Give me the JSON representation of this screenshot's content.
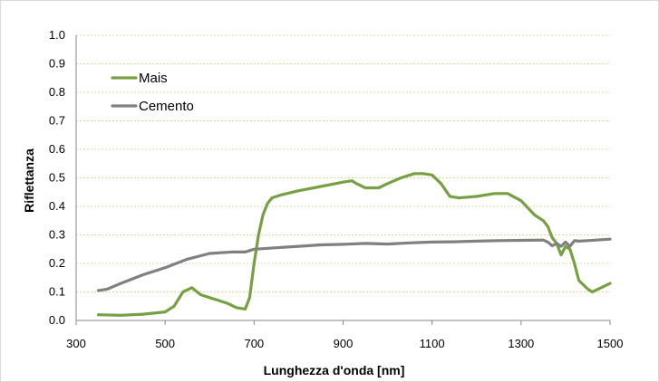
{
  "chart_data": {
    "type": "line",
    "title": "",
    "xlabel": "Lunghezza d'onda [nm]",
    "ylabel": "Riflettanza",
    "xlim": [
      300,
      1500
    ],
    "ylim": [
      0,
      1.0
    ],
    "x_ticks": [
      "300",
      "500",
      "700",
      "900",
      "1100",
      "1300",
      "1500"
    ],
    "y_ticks": [
      "0.0",
      "0.1",
      "0.2",
      "0.3",
      "0.4",
      "0.5",
      "0.6",
      "0.7",
      "0.8",
      "0.9",
      "1.0"
    ],
    "grid": "horizontal dashed",
    "legend_position": "top-left",
    "series": [
      {
        "name": "Mais",
        "color": "#77a043",
        "x": [
          350,
          400,
          450,
          500,
          520,
          540,
          560,
          580,
          600,
          620,
          640,
          660,
          680,
          690,
          700,
          710,
          720,
          730,
          740,
          760,
          800,
          850,
          900,
          920,
          930,
          950,
          980,
          1000,
          1030,
          1060,
          1080,
          1100,
          1120,
          1140,
          1160,
          1200,
          1240,
          1270,
          1300,
          1330,
          1350,
          1360,
          1370,
          1380,
          1390,
          1400,
          1410,
          1420,
          1430,
          1450,
          1460,
          1480,
          1500
        ],
        "values": [
          0.02,
          0.018,
          0.022,
          0.03,
          0.05,
          0.1,
          0.115,
          0.09,
          0.08,
          0.07,
          0.06,
          0.045,
          0.04,
          0.08,
          0.2,
          0.3,
          0.37,
          0.41,
          0.43,
          0.44,
          0.455,
          0.47,
          0.485,
          0.49,
          0.48,
          0.465,
          0.465,
          0.48,
          0.5,
          0.515,
          0.515,
          0.51,
          0.48,
          0.435,
          0.43,
          0.435,
          0.445,
          0.445,
          0.42,
          0.37,
          0.35,
          0.33,
          0.29,
          0.27,
          0.23,
          0.26,
          0.25,
          0.2,
          0.14,
          0.11,
          0.1,
          0.115,
          0.13
        ]
      },
      {
        "name": "Cemento",
        "color": "#808080",
        "x": [
          350,
          370,
          400,
          450,
          500,
          550,
          600,
          650,
          680,
          700,
          750,
          800,
          850,
          900,
          950,
          1000,
          1050,
          1100,
          1150,
          1200,
          1250,
          1300,
          1350,
          1360,
          1370,
          1380,
          1390,
          1400,
          1410,
          1420,
          1430,
          1450,
          1500
        ],
        "values": [
          0.105,
          0.11,
          0.13,
          0.16,
          0.185,
          0.215,
          0.235,
          0.24,
          0.24,
          0.25,
          0.255,
          0.26,
          0.265,
          0.267,
          0.27,
          0.268,
          0.272,
          0.275,
          0.276,
          0.278,
          0.28,
          0.281,
          0.282,
          0.275,
          0.262,
          0.27,
          0.26,
          0.275,
          0.26,
          0.28,
          0.278,
          0.28,
          0.285
        ]
      }
    ]
  }
}
